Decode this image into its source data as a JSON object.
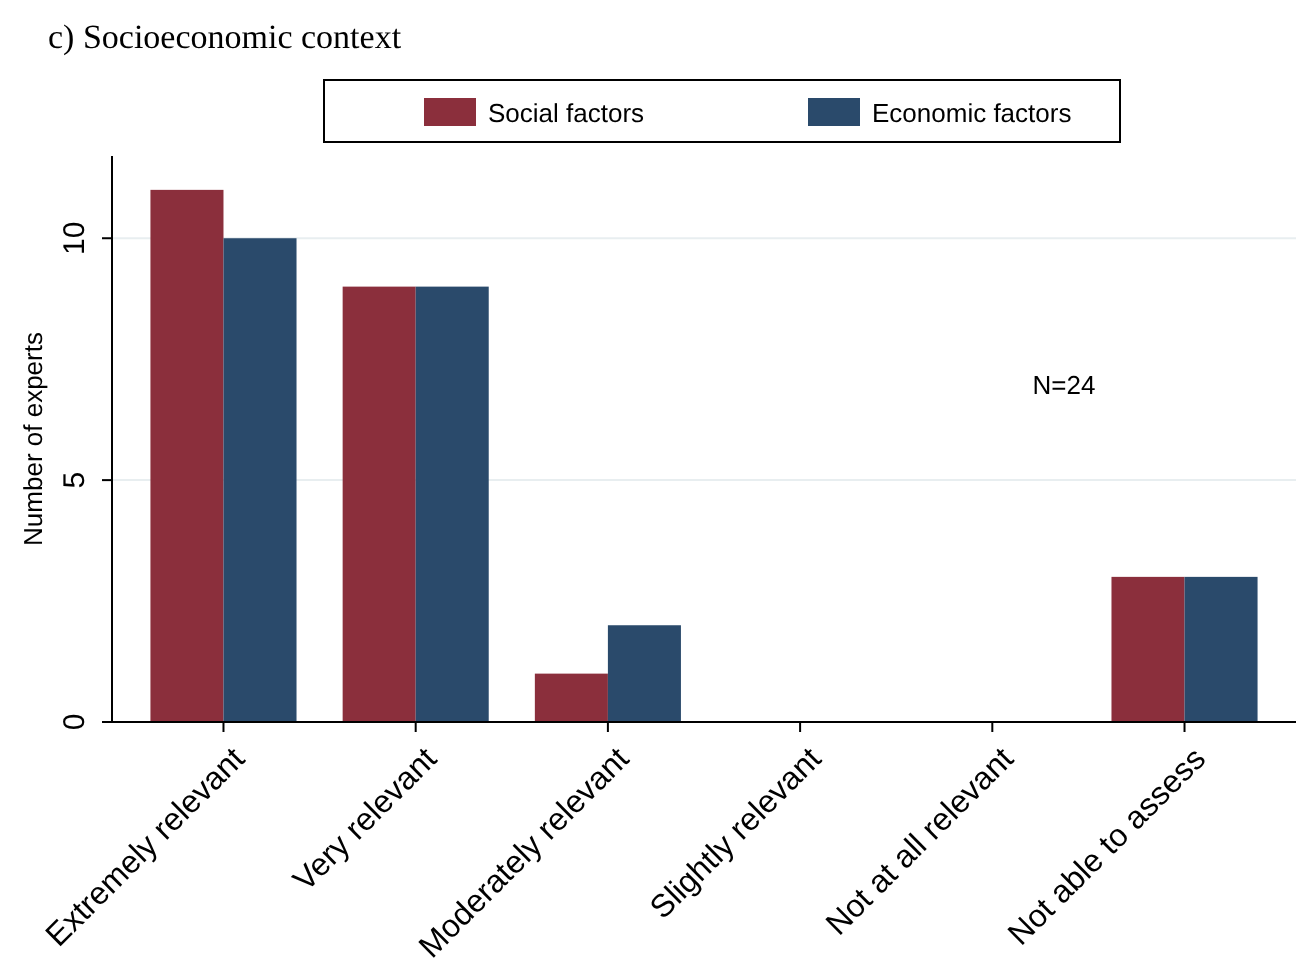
{
  "chart_data": {
    "type": "bar",
    "title": "c) Socioeconomic context",
    "ylabel": "Number of experts",
    "categories": [
      "Extremely relevant",
      "Very relevant",
      "Moderately relevant",
      "Slightly relevant",
      "Not at all relevant",
      "Not able to assess"
    ],
    "series": [
      {
        "name": "Social factors",
        "color": "#8b2f3c",
        "values": [
          11,
          9,
          1,
          0,
          0,
          3
        ]
      },
      {
        "name": "Economic factors",
        "color": "#2a4a6b",
        "values": [
          10,
          9,
          2,
          0,
          0,
          3
        ]
      }
    ],
    "ylim": [
      0,
      11.7
    ],
    "yticks": [
      0,
      5,
      10
    ],
    "grid": "y",
    "legend": "top",
    "annotations": [
      "N=24"
    ]
  }
}
